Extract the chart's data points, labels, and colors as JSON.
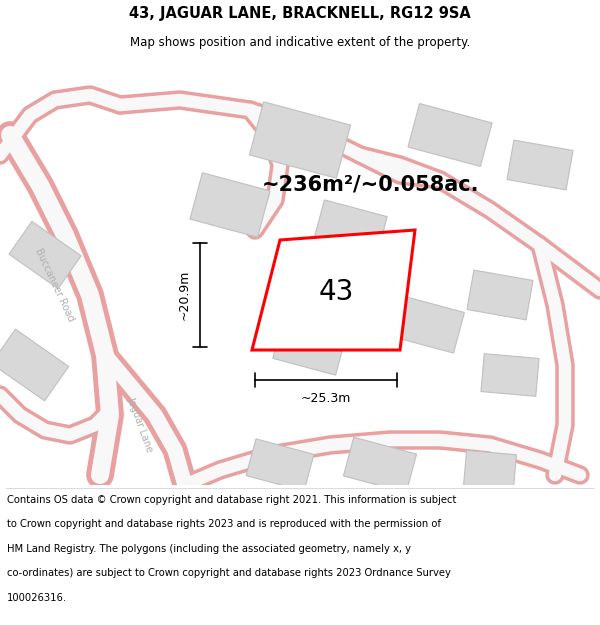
{
  "title": "43, JAGUAR LANE, BRACKNELL, RG12 9SA",
  "subtitle": "Map shows position and indicative extent of the property.",
  "area_text": "~236m²/~0.058ac.",
  "dim_width": "~25.3m",
  "dim_height": "~20.9m",
  "label": "43",
  "map_bg": "#f0efef",
  "road_color": "#e8a0a0",
  "road_fill": "#f8f8f8",
  "building_fill": "#d8d8d8",
  "building_ec": "#c0c0c0",
  "highlight_color": "#ff0000",
  "text_color": "#000000",
  "road_label_color": "#b0b0b0",
  "title_fontsize": 10.5,
  "subtitle_fontsize": 8.5,
  "footer_fontsize": 7.2,
  "label_fontsize": 20,
  "area_fontsize": 15,
  "dim_fontsize": 9,
  "road_label_fontsize": 7,
  "footer_lines": [
    "Contains OS data © Crown copyright and database right 2021. This information is subject",
    "to Crown copyright and database rights 2023 and is reproduced with the permission of",
    "HM Land Registry. The polygons (including the associated geometry, namely x, y",
    "co-ordinates) are subject to Crown copyright and database rights 2023 Ordnance Survey",
    "100026316."
  ]
}
